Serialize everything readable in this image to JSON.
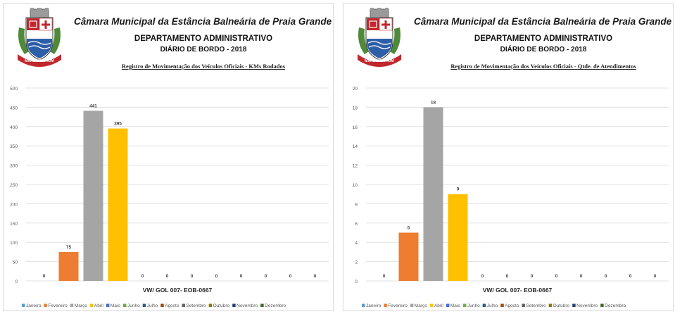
{
  "header": {
    "title": "Câmara Municipal da Estância Balneária de Praia Grande",
    "department": "DEPARTAMENTO ADMINISTRATIVO",
    "diary": "DIÁRIO DE BORDO - 2018",
    "crest_motto": "MARE NOSTRUM"
  },
  "colors": {
    "Janeiro": "#5b9bd5",
    "Fevereiro": "#ed7d31",
    "Março": "#a5a5a5",
    "Abril": "#ffc000",
    "Maio": "#4472c4",
    "Junho": "#70ad47",
    "Julho": "#255e91",
    "Agosto": "#9e480e",
    "Setembro": "#636363",
    "Outubro": "#997300",
    "Novembro": "#264478",
    "Dezembro": "#43682b"
  },
  "chart_data": [
    {
      "type": "bar",
      "title": "Registro de Movimentação dos Veículos Oficiais - KMs Rodados",
      "xlabel": "VW/ GOL 007- EOB-0667",
      "ylim": [
        0,
        500
      ],
      "yticks": [
        "0",
        "50",
        "100",
        "150",
        "200",
        "250",
        "300",
        "350",
        "400",
        "450",
        "500"
      ],
      "grid": true,
      "legend": "bottom",
      "series": [
        {
          "name": "Janeiro",
          "value": 0
        },
        {
          "name": "Fevereiro",
          "value": 75
        },
        {
          "name": "Março",
          "value": 441
        },
        {
          "name": "Abril",
          "value": 395
        },
        {
          "name": "Maio",
          "value": 0
        },
        {
          "name": "Junho",
          "value": 0
        },
        {
          "name": "Julho",
          "value": 0
        },
        {
          "name": "Agosto",
          "value": 0
        },
        {
          "name": "Setembro",
          "value": 0
        },
        {
          "name": "Outubro",
          "value": 0
        },
        {
          "name": "Novembro",
          "value": 0
        },
        {
          "name": "Dezembro",
          "value": 0
        }
      ]
    },
    {
      "type": "bar",
      "title": "Registro de Movimentação dos Veículos Oficiais - Qtde. de Atendimentos",
      "xlabel": "VW/ GOL 007- EOB-0667",
      "ylim": [
        0,
        20
      ],
      "yticks": [
        "0",
        "2",
        "4",
        "6",
        "8",
        "10",
        "12",
        "14",
        "16",
        "18",
        "20"
      ],
      "grid": true,
      "legend": "bottom",
      "series": [
        {
          "name": "Janeiro",
          "value": 0
        },
        {
          "name": "Fevereiro",
          "value": 5
        },
        {
          "name": "Março",
          "value": 18
        },
        {
          "name": "Abril",
          "value": 9
        },
        {
          "name": "Maio",
          "value": 0
        },
        {
          "name": "Junho",
          "value": 0
        },
        {
          "name": "Julho",
          "value": 0
        },
        {
          "name": "Agosto",
          "value": 0
        },
        {
          "name": "Setembro",
          "value": 0
        },
        {
          "name": "Outubro",
          "value": 0
        },
        {
          "name": "Novembro",
          "value": 0
        },
        {
          "name": "Dezembro",
          "value": 0
        }
      ]
    }
  ]
}
